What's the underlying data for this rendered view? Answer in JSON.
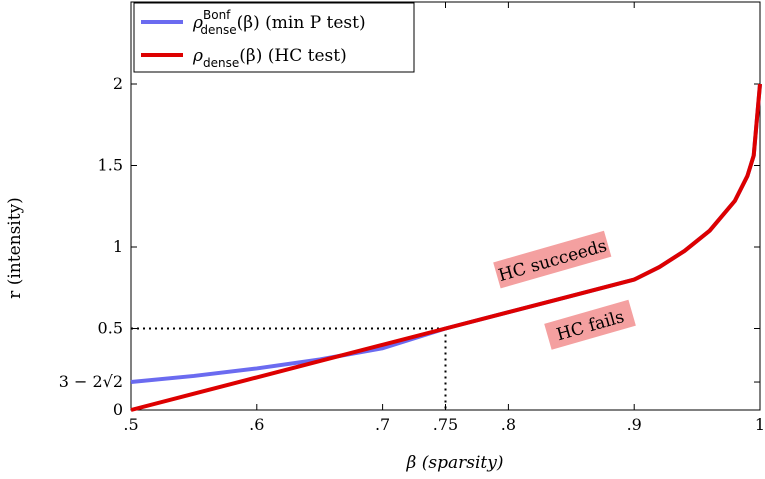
{
  "chart_data": {
    "type": "line",
    "xlabel": "β (sparsity)",
    "ylabel": "r (intensity)",
    "xlim": [
      0.5,
      1.0
    ],
    "ylim": [
      0,
      2.0
    ],
    "x_ticks": [
      {
        "value": 0.5,
        "label": ".5"
      },
      {
        "value": 0.6,
        "label": ".6"
      },
      {
        "value": 0.7,
        "label": ".7"
      },
      {
        "value": 0.75,
        "label": ".75"
      },
      {
        "value": 0.8,
        "label": ".8"
      },
      {
        "value": 0.9,
        "label": ".9"
      },
      {
        "value": 1.0,
        "label": "1"
      }
    ],
    "y_ticks": [
      {
        "value": 0,
        "label": "0"
      },
      {
        "value": 0.1716,
        "label": "3 − 2√2"
      },
      {
        "value": 0.5,
        "label": "0.5"
      },
      {
        "value": 1.0,
        "label": "1"
      },
      {
        "value": 1.5,
        "label": "1.5"
      },
      {
        "value": 2.0,
        "label": "2"
      }
    ],
    "series": [
      {
        "name": "ρ_dense^Bonf(β) (min P test)",
        "legend_main": "ρ",
        "legend_sub": "dense",
        "legend_sup": "Bonf",
        "legend_rest": "(β)  (min P test)",
        "color": "#6b6bf0",
        "points": [
          [
            0.5,
            0.172
          ],
          [
            0.55,
            0.209
          ],
          [
            0.6,
            0.255
          ],
          [
            0.65,
            0.31
          ],
          [
            0.7,
            0.379
          ],
          [
            0.75,
            0.5
          ],
          [
            0.8,
            0.6
          ],
          [
            0.85,
            0.7
          ],
          [
            0.9,
            0.8
          ],
          [
            0.92,
            0.877
          ],
          [
            0.94,
            0.976
          ],
          [
            0.96,
            1.1
          ],
          [
            0.98,
            1.283
          ],
          [
            0.99,
            1.436
          ],
          [
            0.995,
            1.561
          ],
          [
            1.0,
            2.0
          ]
        ]
      },
      {
        "name": "ρ_dense(β) (HC test)",
        "legend_main": "ρ",
        "legend_sub": "dense",
        "legend_sup": "",
        "legend_rest": "(β)  (HC test)",
        "color": "#dd0000",
        "points": [
          [
            0.5,
            0.0
          ],
          [
            0.55,
            0.1
          ],
          [
            0.6,
            0.2
          ],
          [
            0.65,
            0.3
          ],
          [
            0.7,
            0.4
          ],
          [
            0.75,
            0.5
          ],
          [
            0.8,
            0.6
          ],
          [
            0.85,
            0.7
          ],
          [
            0.9,
            0.8
          ],
          [
            0.92,
            0.877
          ],
          [
            0.94,
            0.976
          ],
          [
            0.96,
            1.1
          ],
          [
            0.98,
            1.283
          ],
          [
            0.99,
            1.436
          ],
          [
            0.995,
            1.561
          ],
          [
            1.0,
            2.0
          ]
        ]
      }
    ],
    "reference_point": {
      "x": 0.75,
      "y": 0.5
    },
    "annotations": [
      {
        "text": "HC succeeds",
        "x": 0.835,
        "y": 0.92,
        "rotation": -16,
        "background": "#f4a0a0"
      },
      {
        "text": "HC fails",
        "x": 0.865,
        "y": 0.52,
        "rotation": -16,
        "background": "#f4a0a0"
      }
    ],
    "legend_position": "top-left",
    "grid": false
  }
}
